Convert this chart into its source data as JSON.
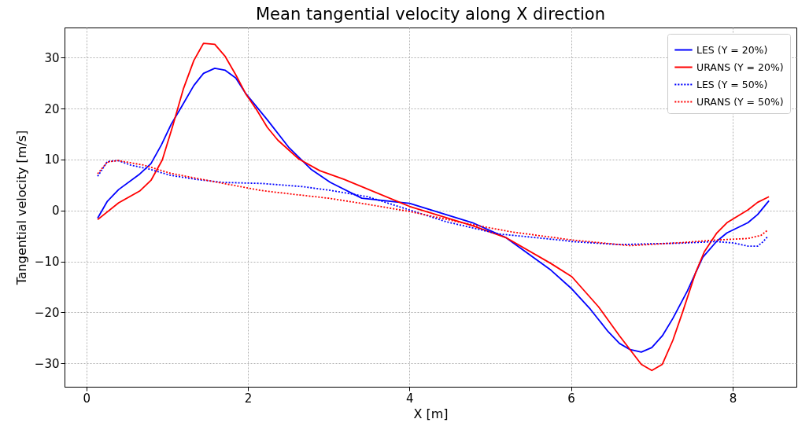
{
  "chart_data": {
    "type": "line",
    "title": "Mean tangential velocity along X direction",
    "xlabel": "X [m]",
    "ylabel": "Tangential velocity [m/s]",
    "xlim": [
      -0.27,
      8.79
    ],
    "ylim": [
      -34.6,
      35.9
    ],
    "xticks": [
      0,
      2,
      4,
      6,
      8
    ],
    "yticks": [
      -30,
      -20,
      -10,
      0,
      10,
      20,
      30
    ],
    "grid": true,
    "legend": "top right",
    "series": [
      {
        "name": "LES (Y = 20%)",
        "color": "#0000ff",
        "line_style": "solid",
        "x": [
          0.14,
          0.26,
          0.4,
          0.65,
          0.8,
          0.93,
          1.05,
          1.18,
          1.33,
          1.45,
          1.59,
          1.72,
          1.85,
          1.97,
          2.24,
          2.51,
          2.78,
          3.02,
          3.41,
          4.0,
          4.78,
          5.19,
          5.75,
          6.01,
          6.24,
          6.46,
          6.6,
          6.73,
          6.87,
          7.0,
          7.13,
          7.26,
          7.44,
          7.63,
          7.8,
          7.93,
          8.19,
          8.31,
          8.45
        ],
        "values": [
          -1.5,
          1.8,
          4.1,
          7.0,
          9.2,
          12.9,
          16.9,
          20.4,
          24.5,
          26.9,
          27.9,
          27.5,
          26.0,
          23.0,
          17.8,
          12.3,
          8.1,
          5.5,
          2.4,
          1.4,
          -2.4,
          -5.3,
          -11.7,
          -15.4,
          -19.4,
          -23.8,
          -26.1,
          -27.3,
          -27.8,
          -26.9,
          -24.6,
          -21.2,
          -15.8,
          -9.2,
          -6.1,
          -4.4,
          -2.4,
          -0.8,
          1.9
        ]
      },
      {
        "name": "URANS (Y = 20%)",
        "color": "#ff0000",
        "line_style": "solid",
        "x": [
          0.14,
          0.4,
          0.66,
          0.8,
          0.94,
          1.07,
          1.2,
          1.33,
          1.45,
          1.59,
          1.72,
          1.85,
          1.98,
          2.11,
          2.24,
          2.37,
          2.63,
          2.89,
          3.19,
          4.0,
          4.78,
          5.19,
          5.75,
          6.01,
          6.34,
          6.6,
          6.87,
          7.0,
          7.13,
          7.26,
          7.38,
          7.54,
          7.65,
          7.8,
          7.93,
          8.19,
          8.31,
          8.45
        ],
        "values": [
          -1.8,
          1.5,
          3.8,
          5.9,
          9.9,
          16.6,
          23.8,
          29.4,
          32.8,
          32.6,
          30.2,
          26.6,
          22.7,
          19.7,
          16.3,
          13.8,
          10.1,
          7.8,
          6.1,
          0.8,
          -3.0,
          -5.3,
          -10.4,
          -13.0,
          -18.9,
          -24.6,
          -30.2,
          -31.4,
          -30.2,
          -25.5,
          -20.0,
          -12.3,
          -8.1,
          -4.5,
          -2.4,
          0.1,
          1.6,
          2.7
        ]
      },
      {
        "name": "LES (Y = 50%)",
        "color": "#0000ff",
        "line_style": "dotted",
        "x": [
          0.14,
          0.26,
          0.39,
          0.55,
          0.78,
          1.04,
          1.36,
          1.69,
          2.17,
          2.66,
          3.0,
          3.48,
          4.0,
          4.45,
          5.1,
          5.92,
          6.01,
          6.6,
          7.38,
          7.8,
          8.02,
          8.19,
          8.31,
          8.38,
          8.44
        ],
        "values": [
          6.7,
          9.6,
          9.8,
          8.9,
          8.1,
          6.9,
          6.1,
          5.5,
          5.3,
          4.7,
          4.0,
          2.7,
          0.1,
          -2.2,
          -4.6,
          -5.9,
          -6.1,
          -6.7,
          -6.4,
          -6.1,
          -6.4,
          -7.0,
          -7.0,
          -6.1,
          -5.0
        ]
      },
      {
        "name": "URANS (Y = 50%)",
        "color": "#ff0000",
        "line_style": "dotted",
        "x": [
          0.14,
          0.26,
          0.39,
          0.71,
          1.04,
          1.53,
          2.17,
          2.66,
          3.0,
          3.48,
          4.0,
          4.65,
          5.26,
          5.92,
          6.01,
          6.73,
          7.38,
          7.8,
          8.19,
          8.35,
          8.44
        ],
        "values": [
          7.2,
          9.5,
          9.8,
          8.9,
          7.3,
          5.8,
          3.9,
          3.0,
          2.4,
          1.2,
          -0.2,
          -2.4,
          -4.2,
          -5.6,
          -5.8,
          -6.9,
          -6.3,
          -5.8,
          -5.5,
          -4.9,
          -3.8
        ]
      }
    ]
  }
}
